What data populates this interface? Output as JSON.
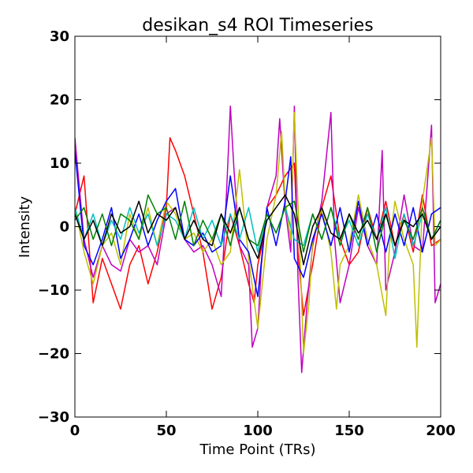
{
  "chart_data": {
    "type": "line",
    "title": "desikan_s4 ROI Timeseries",
    "xlabel": "Time Point (TRs)",
    "ylabel": "Intensity",
    "xlim": [
      0,
      200
    ],
    "ylim": [
      -30,
      30
    ],
    "xticks": [
      0,
      50,
      100,
      150,
      200
    ],
    "yticks": [
      -30,
      -20,
      -10,
      0,
      10,
      20,
      30
    ],
    "xtick_labels": [
      "0",
      "50",
      "100",
      "150",
      "200"
    ],
    "ytick_labels": [
      "−30",
      "−20",
      "−10",
      "0",
      "10",
      "20",
      "30"
    ],
    "grid": false,
    "legend": "none",
    "series": [
      {
        "color": "#ff0000",
        "x": [
          0,
          5,
          10,
          15,
          20,
          25,
          30,
          35,
          40,
          45,
          50,
          52,
          55,
          60,
          65,
          70,
          75,
          80,
          85,
          90,
          95,
          98,
          100,
          103,
          105,
          110,
          115,
          120,
          122,
          125,
          130,
          135,
          140,
          145,
          150,
          155,
          160,
          165,
          170,
          175,
          180,
          185,
          190,
          195,
          200
        ],
        "values": [
          2,
          8,
          -12,
          -5,
          -9,
          -13,
          -6,
          -3,
          -9,
          -4,
          3,
          14,
          12,
          8,
          2,
          -4,
          -13,
          -8,
          2,
          -3,
          -9,
          -12,
          -6,
          -2,
          3,
          5,
          8,
          10,
          -4,
          -14,
          -6,
          3,
          8,
          -2,
          -6,
          -4,
          3,
          -2,
          4,
          -3,
          2,
          -4,
          5,
          -3,
          -2
        ]
      },
      {
        "color": "#bf00bf",
        "x": [
          0,
          5,
          10,
          15,
          20,
          25,
          30,
          35,
          40,
          45,
          50,
          55,
          60,
          65,
          70,
          75,
          80,
          83,
          85,
          87,
          90,
          95,
          97,
          100,
          102,
          105,
          110,
          112,
          115,
          118,
          120,
          122,
          124,
          127,
          130,
          135,
          140,
          142,
          145,
          150,
          155,
          160,
          165,
          168,
          170,
          175,
          180,
          185,
          190,
          195,
          197,
          200
        ],
        "values": [
          14,
          -2,
          -8,
          -3,
          -6,
          -7,
          -2,
          -4,
          -3,
          -6,
          2,
          3,
          -2,
          -4,
          -3,
          -6,
          -11,
          6,
          19,
          9,
          -3,
          -6,
          -19,
          -16,
          -6,
          3,
          8,
          17,
          3,
          -4,
          19,
          -8,
          -23,
          -12,
          -3,
          4,
          18,
          -2,
          -12,
          -6,
          3,
          -3,
          -6,
          12,
          -10,
          -4,
          5,
          -3,
          -4,
          16,
          -12,
          -9
        ]
      },
      {
        "color": "#bfbf00",
        "x": [
          0,
          5,
          10,
          15,
          20,
          25,
          30,
          35,
          40,
          45,
          50,
          55,
          60,
          65,
          70,
          75,
          80,
          85,
          90,
          95,
          100,
          105,
          110,
          113,
          115,
          118,
          120,
          123,
          125,
          128,
          130,
          135,
          140,
          143,
          145,
          150,
          155,
          160,
          165,
          170,
          172,
          175,
          180,
          185,
          187,
          190,
          195,
          197,
          200
        ],
        "values": [
          3,
          -4,
          -9,
          -3,
          -1,
          -6,
          2,
          -2,
          3,
          -3,
          4,
          2,
          -2,
          -1,
          -4,
          -2,
          -6,
          -4,
          9,
          -5,
          -16,
          -2,
          5,
          15,
          4,
          -2,
          18,
          -4,
          -20,
          -12,
          -2,
          3,
          -4,
          -13,
          -6,
          -3,
          5,
          -2,
          -6,
          -14,
          -3,
          4,
          -2,
          -6,
          -19,
          4,
          14,
          -3,
          -2
        ]
      },
      {
        "color": "#0000ff",
        "x": [
          0,
          5,
          10,
          15,
          20,
          25,
          30,
          35,
          40,
          45,
          50,
          55,
          60,
          65,
          70,
          75,
          80,
          85,
          90,
          95,
          100,
          105,
          110,
          115,
          118,
          120,
          125,
          130,
          135,
          140,
          145,
          150,
          155,
          160,
          165,
          170,
          175,
          180,
          185,
          190,
          195,
          200
        ],
        "values": [
          12,
          -3,
          -6,
          -2,
          3,
          -5,
          -2,
          2,
          -3,
          1,
          4,
          6,
          -2,
          -3,
          -1,
          -4,
          -3,
          8,
          -2,
          -4,
          -11,
          3,
          -3,
          4,
          11,
          -5,
          -8,
          -2,
          2,
          -3,
          3,
          -4,
          4,
          -3,
          2,
          -4,
          2,
          -3,
          3,
          -4,
          2,
          3
        ]
      },
      {
        "color": "#00bfbf",
        "x": [
          0,
          5,
          10,
          15,
          20,
          25,
          30,
          35,
          40,
          45,
          50,
          55,
          60,
          65,
          70,
          75,
          80,
          85,
          90,
          95,
          100,
          105,
          110,
          115,
          120,
          125,
          130,
          135,
          140,
          145,
          150,
          155,
          160,
          165,
          170,
          175,
          180,
          185,
          190,
          195,
          200
        ],
        "values": [
          3,
          -2,
          2,
          -3,
          1,
          -2,
          3,
          -1,
          2,
          -3,
          2,
          1,
          -2,
          3,
          -2,
          1,
          -3,
          2,
          -2,
          3,
          -4,
          2,
          -1,
          3,
          -2,
          -3,
          2,
          -2,
          3,
          -2,
          1,
          -3,
          2,
          -2,
          3,
          -5,
          2,
          -3,
          2,
          -2,
          1
        ]
      },
      {
        "color": "#008000",
        "x": [
          0,
          5,
          10,
          15,
          20,
          25,
          30,
          35,
          40,
          45,
          50,
          55,
          60,
          65,
          70,
          75,
          80,
          85,
          90,
          95,
          100,
          105,
          110,
          115,
          120,
          125,
          130,
          135,
          140,
          145,
          150,
          155,
          160,
          165,
          170,
          175,
          180,
          185,
          190,
          195,
          200
        ],
        "values": [
          1,
          3,
          -2,
          2,
          -3,
          2,
          1,
          -2,
          5,
          2,
          3,
          -2,
          4,
          -3,
          1,
          -2,
          2,
          -3,
          3,
          -2,
          -3,
          2,
          -1,
          3,
          4,
          -4,
          2,
          -2,
          3,
          -3,
          2,
          -2,
          3,
          -4,
          2,
          -3,
          1,
          -2,
          3,
          -2,
          1
        ]
      },
      {
        "color": "#000000",
        "x": [
          0,
          5,
          10,
          15,
          20,
          25,
          30,
          35,
          40,
          45,
          50,
          55,
          60,
          65,
          70,
          75,
          80,
          85,
          90,
          95,
          100,
          105,
          110,
          115,
          120,
          125,
          130,
          135,
          140,
          145,
          150,
          155,
          160,
          165,
          170,
          175,
          180,
          185,
          190,
          195,
          200
        ],
        "values": [
          2,
          -2,
          1,
          -3,
          2,
          -1,
          0,
          4,
          -1,
          2,
          1,
          3,
          -2,
          1,
          -2,
          -3,
          2,
          -1,
          3,
          -2,
          -5,
          1,
          3,
          5,
          2,
          -6,
          0,
          3,
          -1,
          -2,
          2,
          -1,
          1,
          -2,
          2,
          -3,
          1,
          0,
          2,
          -2,
          0
        ]
      }
    ]
  }
}
